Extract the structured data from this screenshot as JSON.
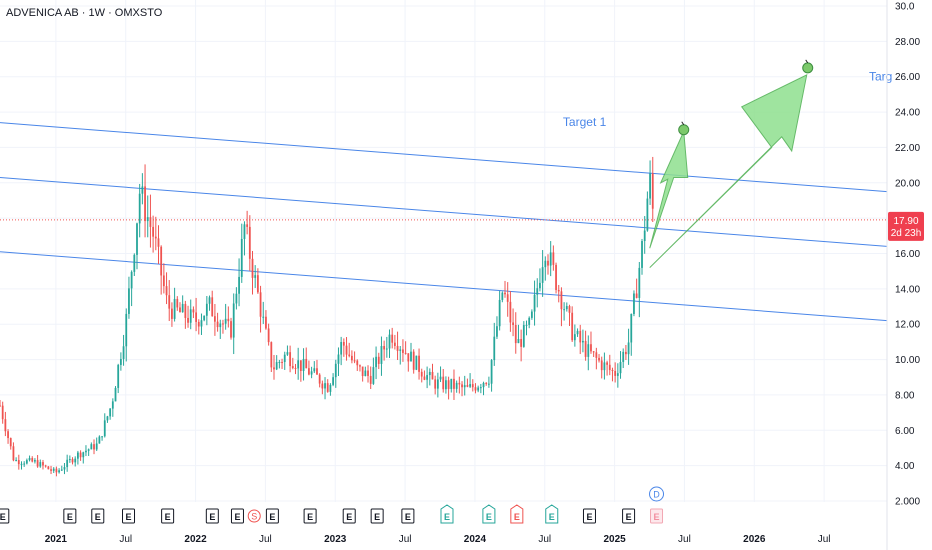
{
  "header": {
    "title": "ADVENICA AB · 1W · OMXSTO"
  },
  "annotations": {
    "target1": "Target 1",
    "target2": "Targ"
  },
  "price_badge": {
    "price": "17.90",
    "countdown": "2d 23h"
  },
  "colors": {
    "up": "#26a69a",
    "down": "#ef5350",
    "channel": "#4a86e8",
    "arrow_fill": "#8fe08f",
    "arrow_stroke": "#4caf50",
    "badge": "#ef3f4f",
    "current_line": "#ef5350"
  },
  "event_markers": {
    "earnings_label": "E",
    "split_label": "S",
    "dividend_label": "D",
    "items": [
      {
        "date": "2020.03",
        "type": "E",
        "style": "gray"
      },
      {
        "date": "2020.62",
        "type": "E",
        "style": "gray"
      },
      {
        "date": "2021.10",
        "type": "E",
        "style": "gray"
      },
      {
        "date": "2021.30",
        "type": "E",
        "style": "gray"
      },
      {
        "date": "2021.52",
        "type": "E",
        "style": "gray"
      },
      {
        "date": "2021.80",
        "type": "E",
        "style": "gray"
      },
      {
        "date": "2022.12",
        "type": "E",
        "style": "gray"
      },
      {
        "date": "2022.30",
        "type": "E",
        "style": "gray"
      },
      {
        "date": "2022.42",
        "type": "S",
        "style": "red-circle"
      },
      {
        "date": "2022.55",
        "type": "E",
        "style": "gray"
      },
      {
        "date": "2022.82",
        "type": "E",
        "style": "gray"
      },
      {
        "date": "2023.10",
        "type": "E",
        "style": "gray"
      },
      {
        "date": "2023.30",
        "type": "E",
        "style": "gray"
      },
      {
        "date": "2023.52",
        "type": "E",
        "style": "gray"
      },
      {
        "date": "2023.80",
        "type": "E",
        "style": "green"
      },
      {
        "date": "2024.10",
        "type": "E",
        "style": "green"
      },
      {
        "date": "2024.30",
        "type": "E",
        "style": "red"
      },
      {
        "date": "2024.55",
        "type": "E",
        "style": "green"
      },
      {
        "date": "2024.82",
        "type": "E",
        "style": "gray"
      },
      {
        "date": "2025.10",
        "type": "E",
        "style": "gray"
      },
      {
        "date": "2025.30",
        "type": "E",
        "style": "pink-future"
      },
      {
        "date": "2025.30",
        "type": "D",
        "style": "blue-circle"
      }
    ]
  },
  "chart_data": {
    "type": "candlestick",
    "title": "ADVENICA AB · 1W · OMXSTO",
    "ylim": [
      2.0,
      30.0
    ],
    "xlim": [
      "2020.6",
      "2026.95"
    ],
    "y_ticks": [
      "2.000",
      "4.00",
      "6.00",
      "8.00",
      "10.00",
      "12.00",
      "14.00",
      "16.00",
      "18.00",
      "20.00",
      "22.00",
      "24.00",
      "26.00",
      "28.00",
      "30.0"
    ],
    "x_ticks": [
      {
        "label": "2021",
        "x": "2021.0"
      },
      {
        "label": "Jul",
        "x": "2021.5"
      },
      {
        "label": "2022",
        "x": "2022.0"
      },
      {
        "label": "Jul",
        "x": "2022.5"
      },
      {
        "label": "2023",
        "x": "2023.0"
      },
      {
        "label": "Jul",
        "x": "2023.5"
      },
      {
        "label": "2024",
        "x": "2024.0"
      },
      {
        "label": "Jul",
        "x": "2024.5"
      },
      {
        "label": "2025",
        "x": "2025.0"
      },
      {
        "label": "Jul",
        "x": "2025.5"
      },
      {
        "label": "2026",
        "x": "2026.0"
      },
      {
        "label": "Jul",
        "x": "2026.5"
      }
    ],
    "current_price": 17.9,
    "price_path": [
      [
        "2020.60",
        7.4
      ],
      [
        "2020.70",
        4.3
      ],
      [
        "2020.85",
        4.2
      ],
      [
        "2021.00",
        3.6
      ],
      [
        "2021.15",
        4.6
      ],
      [
        "2021.30",
        5.2
      ],
      [
        "2021.40",
        7.5
      ],
      [
        "2021.50",
        12.0
      ],
      [
        "2021.60",
        19.5
      ],
      [
        "2021.70",
        17.0
      ],
      [
        "2021.80",
        13.0
      ],
      [
        "2022.00",
        12.2
      ],
      [
        "2022.10",
        13.0
      ],
      [
        "2022.25",
        11.5
      ],
      [
        "2022.35",
        17.5
      ],
      [
        "2022.45",
        13.5
      ],
      [
        "2022.55",
        9.5
      ],
      [
        "2022.65",
        10.3
      ],
      [
        "2022.80",
        9.4
      ],
      [
        "2022.95",
        8.5
      ],
      [
        "2023.05",
        11.0
      ],
      [
        "2023.15",
        9.5
      ],
      [
        "2023.25",
        9.0
      ],
      [
        "2023.40",
        11.5
      ],
      [
        "2023.55",
        10.0
      ],
      [
        "2023.70",
        8.7
      ],
      [
        "2023.85",
        8.5
      ],
      [
        "2023.95",
        8.3
      ],
      [
        "2024.10",
        9.0
      ],
      [
        "2024.20",
        14.0
      ],
      [
        "2024.30",
        10.8
      ],
      [
        "2024.40",
        12.0
      ],
      [
        "2024.50",
        16.5
      ],
      [
        "2024.60",
        14.0
      ],
      [
        "2024.70",
        11.5
      ],
      [
        "2024.80",
        10.5
      ],
      [
        "2024.90",
        9.8
      ],
      [
        "2025.00",
        9.2
      ],
      [
        "2025.10",
        11.0
      ],
      [
        "2025.20",
        16.5
      ],
      [
        "2025.25",
        20.3
      ],
      [
        "2025.28",
        17.9
      ]
    ],
    "channel_lines": [
      {
        "x1": "2020.6",
        "y1": 23.4,
        "x2": "2026.95",
        "y2": 19.5
      },
      {
        "x1": "2020.6",
        "y1": 20.3,
        "x2": "2026.95",
        "y2": 16.4
      },
      {
        "x1": "2020.6",
        "y1": 16.1,
        "x2": "2026.95",
        "y2": 12.2
      }
    ]
  }
}
